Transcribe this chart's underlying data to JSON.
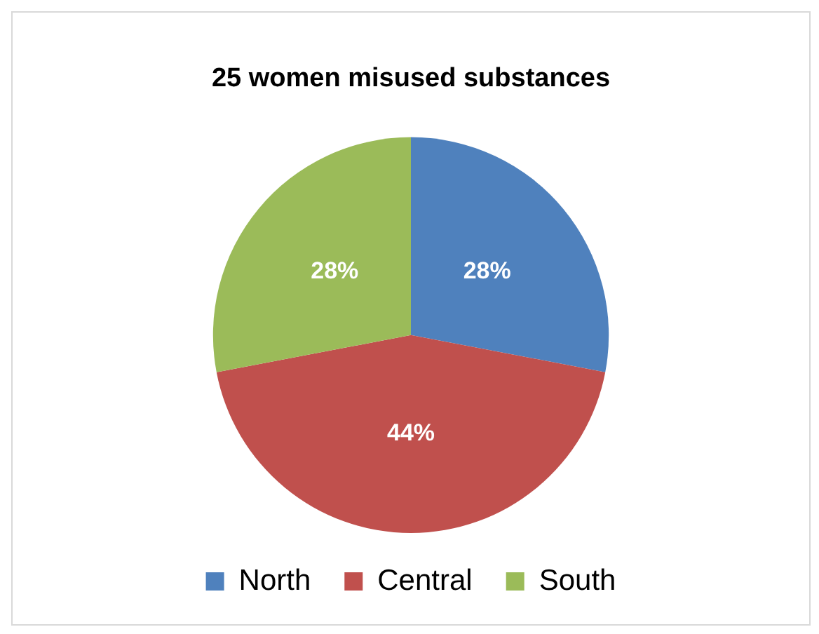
{
  "chart_data": {
    "type": "pie",
    "title": "25 women misused substances",
    "categories": [
      "North",
      "Central",
      "South"
    ],
    "values": [
      28,
      44,
      28
    ],
    "colors": [
      "#4f81bd",
      "#c0504d",
      "#9bbb59"
    ],
    "value_labels": [
      "28%",
      "44%",
      "28%"
    ],
    "legend": "bottom"
  }
}
